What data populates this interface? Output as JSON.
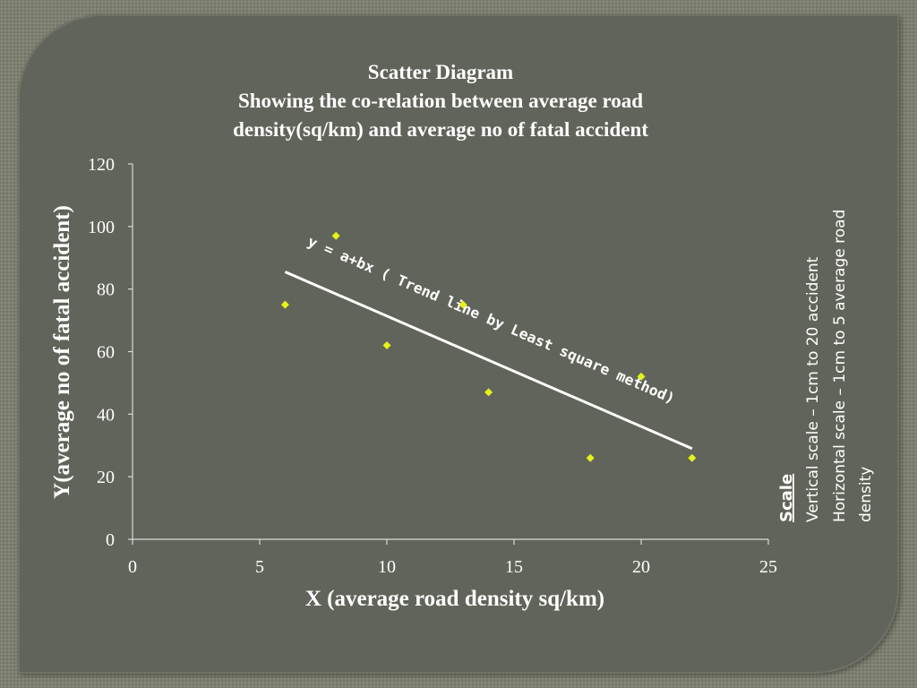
{
  "colors": {
    "background": "#61645a",
    "axis": "#d9d9d9",
    "marker": "#e6f21a",
    "trend_line": "#ffffff",
    "text": "#ffffff"
  },
  "chart_data": {
    "type": "scatter",
    "title": [
      "Scatter Diagram",
      "Showing the co-relation between average road",
      "density(sq/km) and average no of fatal accident"
    ],
    "xlabel": "X (average road density sq/km)",
    "ylabel": "Y(average no of fatal accident)",
    "xlim": [
      0,
      25
    ],
    "ylim": [
      0,
      120
    ],
    "xticks": [
      0,
      5,
      10,
      15,
      20,
      25
    ],
    "yticks": [
      0,
      20,
      40,
      60,
      80,
      100,
      120
    ],
    "grid": false,
    "marker": "diamond",
    "points": [
      {
        "x": 6,
        "y": 75
      },
      {
        "x": 8,
        "y": 97
      },
      {
        "x": 10,
        "y": 62
      },
      {
        "x": 13,
        "y": 75
      },
      {
        "x": 14,
        "y": 47
      },
      {
        "x": 18,
        "y": 26
      },
      {
        "x": 20,
        "y": 52
      },
      {
        "x": 22,
        "y": 26
      }
    ],
    "trend_line": {
      "x": [
        6,
        22
      ],
      "y": [
        85.5,
        29
      ],
      "label": "y = a+bx ( Trend line by Least square method)"
    },
    "annotation": {
      "heading": "Scale",
      "lines": [
        "Vertical scale – 1cm to 20 accident",
        "Horizontal scale – 1cm to 5 average road",
        "density"
      ]
    }
  }
}
